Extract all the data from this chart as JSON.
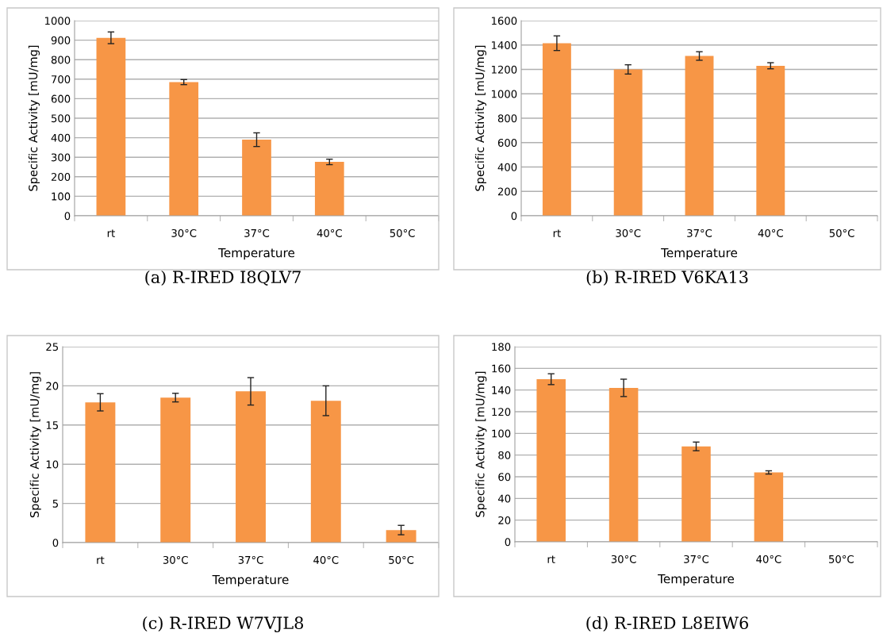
{
  "chart_data": [
    {
      "type": "bar",
      "title": "(a) R-IRED I8QLV7",
      "xlabel": "Temperature",
      "ylabel": "Specific Activity [mU/mg]",
      "categories": [
        "rt",
        "30°C",
        "37°C",
        "40°C",
        "50°C"
      ],
      "values": [
        912,
        685,
        390,
        276,
        0
      ],
      "errors": [
        30,
        13,
        35,
        14,
        null
      ],
      "color": "#f79646",
      "ylim": [
        0,
        1000
      ],
      "yticks": [
        0,
        100,
        200,
        300,
        400,
        500,
        600,
        700,
        800,
        900,
        1000
      ],
      "grid": "y"
    },
    {
      "type": "bar",
      "title": "(b) R-IRED V6KA13",
      "xlabel": "Temperature",
      "ylabel": "Specific Activity [mU/mg]",
      "categories": [
        "rt",
        "30°C",
        "37°C",
        "40°C",
        "50°C"
      ],
      "values": [
        1415,
        1200,
        1310,
        1230,
        0
      ],
      "errors": [
        60,
        38,
        35,
        25,
        null
      ],
      "color": "#f79646",
      "ylim": [
        0,
        1600
      ],
      "yticks": [
        0,
        200,
        400,
        600,
        800,
        1000,
        1200,
        1400,
        1600
      ],
      "grid": "y"
    },
    {
      "type": "bar",
      "title": "(c) R-IRED W7VJL8",
      "xlabel": "Temperature",
      "ylabel": "Specific Activity [mU/mg]",
      "categories": [
        "rt",
        "30°C",
        "37°C",
        "40°C",
        "50°C"
      ],
      "values": [
        17.9,
        18.5,
        19.3,
        18.1,
        1.6
      ],
      "errors": [
        1.1,
        0.55,
        1.75,
        1.9,
        0.6
      ],
      "color": "#f79646",
      "ylim": [
        0,
        25
      ],
      "yticks": [
        0,
        5,
        10,
        15,
        20,
        25
      ],
      "grid": "y"
    },
    {
      "type": "bar",
      "title": "(d) R-IRED L8EIW6",
      "xlabel": "Temperature",
      "ylabel": "Specific Activity [mU/mg]",
      "categories": [
        "rt",
        "30°C",
        "37°C",
        "40°C",
        "50°C"
      ],
      "values": [
        150,
        142,
        88,
        64,
        0
      ],
      "errors": [
        5,
        8,
        4,
        1.5,
        null
      ],
      "color": "#f79646",
      "ylim": [
        0,
        180
      ],
      "yticks": [
        0,
        20,
        40,
        60,
        80,
        100,
        120,
        140,
        160,
        180
      ],
      "grid": "y"
    }
  ]
}
